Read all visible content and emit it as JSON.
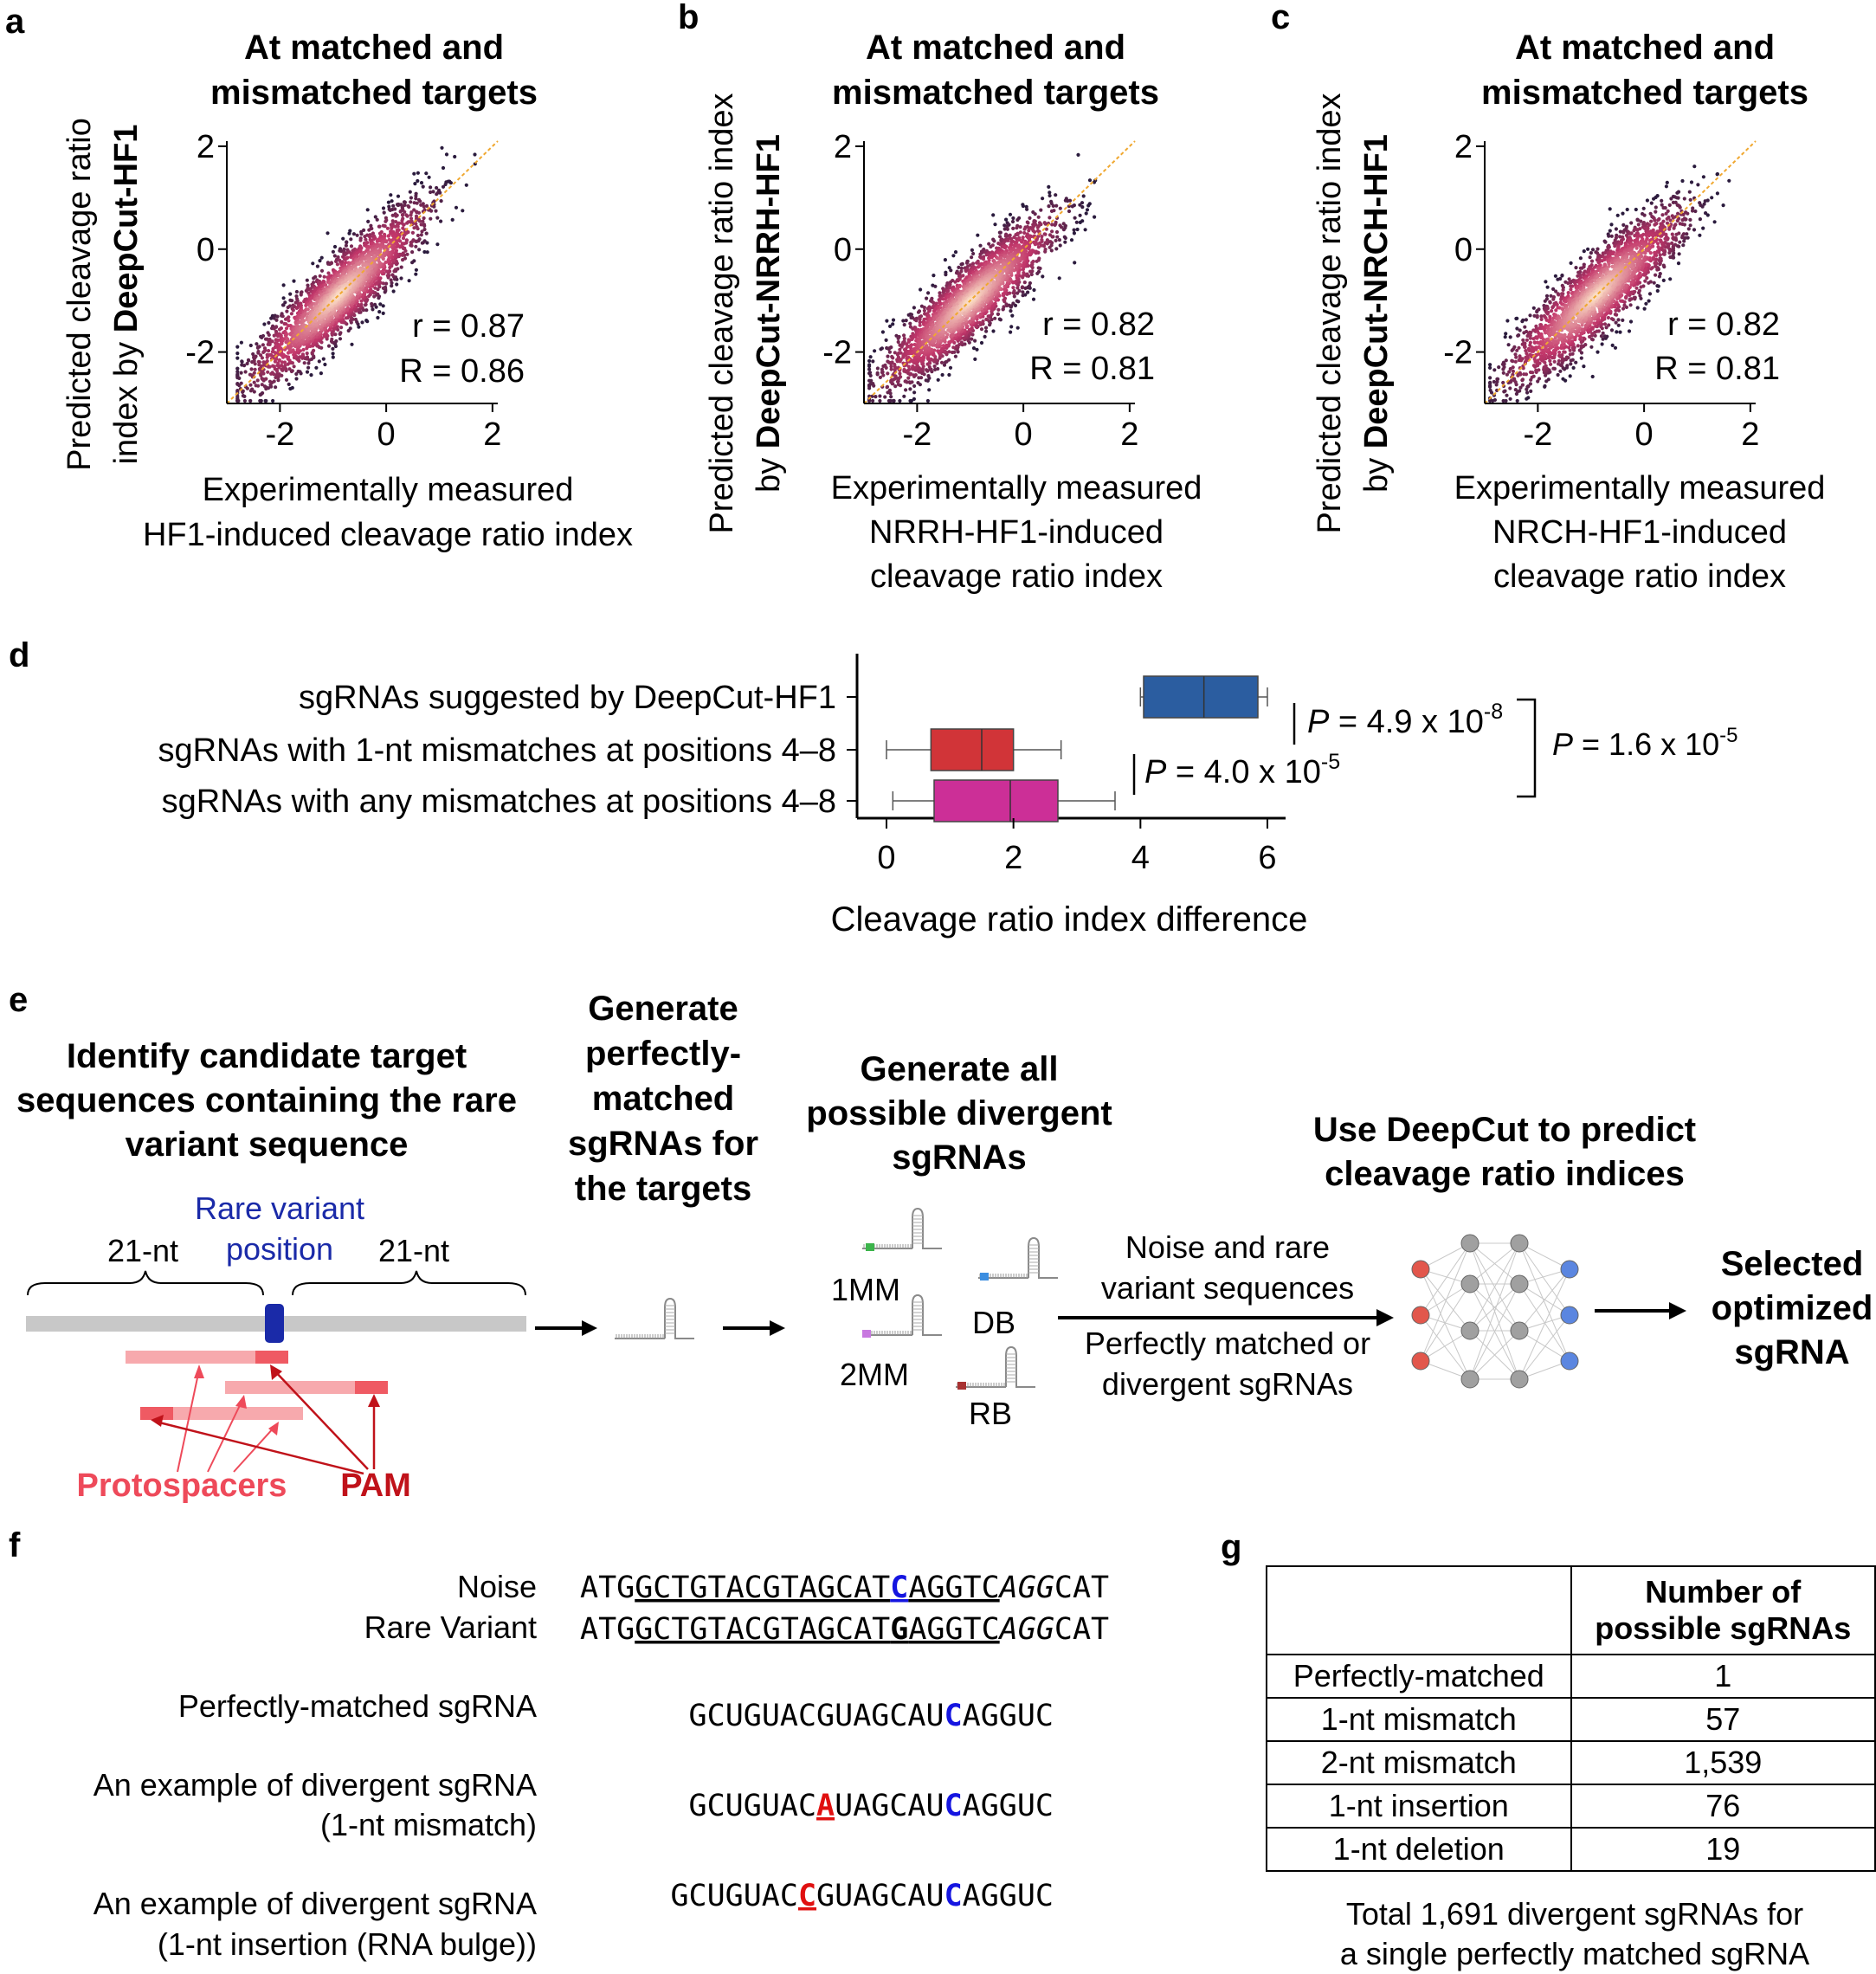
{
  "panels": {
    "a": {
      "letter": "a",
      "title_1": "At matched and",
      "title_2": "mismatched targets",
      "ylabel_1": "Predicted cleavage ratio",
      "ylabel_2a": "index by ",
      "ylabel_2b": "DeepCut-HF1",
      "xlabel_1": "Experimentally measured",
      "xlabel_2": "HF1-induced cleavage ratio index",
      "xlabel_3": "",
      "r_label": "r = 0.87",
      "R_label": "R = 0.86"
    },
    "b": {
      "letter": "b",
      "title_1": "At matched and",
      "title_2": "mismatched targets",
      "ylabel_1": "Predicted cleavage ratio index",
      "ylabel_2a": "by ",
      "ylabel_2b": "DeepCut-NRRH-HF1",
      "xlabel_1": "Experimentally measured",
      "xlabel_2": "NRRH-HF1-induced",
      "xlabel_3": "cleavage ratio index",
      "r_label": "r = 0.82",
      "R_label": "R = 0.81"
    },
    "c": {
      "letter": "c",
      "title_1": "At matched and",
      "title_2": "mismatched targets",
      "ylabel_1": "Predicted cleavage ratio index",
      "ylabel_2a": "by ",
      "ylabel_2b": "DeepCut-NRCH-HF1",
      "xlabel_1": "Experimentally measured",
      "xlabel_2": "NRCH-HF1-induced",
      "xlabel_3": "cleavage ratio index",
      "r_label": "r = 0.82",
      "R_label": "R = 0.81"
    },
    "d": {
      "letter": "d"
    },
    "e": {
      "letter": "e",
      "step1_1": "Identify candidate target",
      "step1_2": "sequences containing the rare",
      "step1_3": "variant sequence",
      "step2_1": "Generate",
      "step2_2": "perfectly-",
      "step2_3": "matched",
      "step2_4": "sgRNAs for",
      "step2_5": "the targets",
      "step3_1": "Generate all",
      "step3_2": "possible divergent",
      "step3_3": "sgRNAs",
      "step4_1": "Use DeepCut to predict",
      "step4_2": "cleavage ratio indices",
      "step5_1": "Selected",
      "step5_2": "optimized",
      "step5_3": "sgRNA",
      "rare_variant_1": "Rare variant",
      "rare_variant_2": "position",
      "flank_left": "21-nt",
      "flank_right": "21-nt",
      "protospacers": "Protospacers",
      "pam": "PAM",
      "mm1": "1MM",
      "mm2": "2MM",
      "db": "DB",
      "rb": "RB",
      "input1_1": "Noise and rare",
      "input1_2": "variant sequences",
      "input2_1": "Perfectly matched or",
      "input2_2": "divergent sgRNAs"
    },
    "f": {
      "letter": "f",
      "noise_label": "Noise",
      "rare_label": "Rare Variant",
      "pm_label": "Perfectly-matched sgRNA",
      "div1_label_1": "An example of divergent sgRNA",
      "div1_label_2": "(1-nt mismatch)",
      "div2_label_1": "An example of divergent sgRNA",
      "div2_label_2": "(1-nt insertion (RNA bulge))",
      "noise_seq": [
        "ATG",
        "GCTGTACGTAGCAT",
        "C",
        "AGGTC",
        "AGG",
        "CAT"
      ],
      "rare_seq": [
        "ATG",
        "GCTGTACGTAGCAT",
        "G",
        "AGGTC",
        "AGG",
        "CAT"
      ],
      "pm_seq": [
        "GCUGUACGUAGCAU",
        "C",
        "AGGUC"
      ],
      "div1_seq": [
        "GCUGUAC",
        "A",
        "UAGCAU",
        "C",
        "AGGUC"
      ],
      "div2_seq": [
        "GCUGUAC",
        "C",
        "GUAGCAU",
        "C",
        "AGGUC"
      ]
    },
    "g": {
      "letter": "g",
      "header_1": "Number of",
      "header_2": "possible sgRNAs",
      "rows": [
        {
          "label": "Perfectly-matched",
          "value": "1"
        },
        {
          "label": "1-nt mismatch",
          "value": "57"
        },
        {
          "label": "2-nt mismatch",
          "value": "1,539"
        },
        {
          "label": "1-nt insertion",
          "value": "76"
        },
        {
          "label": "1-nt deletion",
          "value": "19"
        }
      ],
      "caption_1": "Total 1,691 divergent sgRNAs for",
      "caption_2": "a single perfectly matched sgRNA"
    }
  },
  "colors": {
    "scatter_low": "#2a1b3d",
    "scatter_mid": "#c2366a",
    "scatter_high": "#fde3c8",
    "diag_line": "#f0a830",
    "box_blue": "#2b5da0",
    "box_red": "#d13438",
    "box_magenta": "#cc2f97",
    "rare_variant": "#1a2aa8",
    "protospacer": "#f7a9ad",
    "pam": "#ef5a63",
    "protospacer_text": "#ee4a5a",
    "pam_text": "#c0121a",
    "highlight_blue": "#1515e0",
    "highlight_red": "#e01010",
    "nn_red": "#e2574c",
    "nn_grey": "#a0a0a0",
    "nn_blue": "#5b86e0"
  },
  "chart_data": [
    {
      "type": "scatter",
      "panel": "a",
      "title": "At matched and mismatched targets",
      "xlabel": "Experimentally measured HF1-induced cleavage ratio index",
      "ylabel": "Predicted cleavage ratio index by DeepCut-HF1",
      "xlim": [
        -3.0,
        2.1
      ],
      "ylim": [
        -3.0,
        2.1
      ],
      "xticks": [
        -2,
        0,
        2
      ],
      "yticks": [
        -2,
        0,
        2
      ],
      "pearson_r": 0.87,
      "spearman_R": 0.86,
      "cloud": {
        "center": [
          -0.9,
          -0.9
        ],
        "x_range": [
          -2.8,
          1.9
        ],
        "slope": 0.95,
        "spread": 0.38
      },
      "reference_line": "y = x"
    },
    {
      "type": "scatter",
      "panel": "b",
      "title": "At matched and mismatched targets",
      "xlabel": "Experimentally measured NRRH-HF1-induced cleavage ratio index",
      "ylabel": "Predicted cleavage ratio index by DeepCut-NRRH-HF1",
      "xlim": [
        -3.0,
        2.1
      ],
      "ylim": [
        -3.0,
        2.1
      ],
      "xticks": [
        -2,
        0,
        2
      ],
      "yticks": [
        -2,
        0,
        2
      ],
      "pearson_r": 0.82,
      "spearman_R": 0.81,
      "cloud": {
        "center": [
          -1.0,
          -1.0
        ],
        "x_range": [
          -2.9,
          1.6
        ],
        "slope": 0.9,
        "spread": 0.38
      },
      "reference_line": "y = x"
    },
    {
      "type": "scatter",
      "panel": "c",
      "title": "At matched and mismatched targets",
      "xlabel": "Experimentally measured NRCH-HF1-induced cleavage ratio index",
      "ylabel": "Predicted cleavage ratio index by DeepCut-NRCH-HF1",
      "xlim": [
        -3.0,
        2.1
      ],
      "ylim": [
        -3.0,
        2.1
      ],
      "xticks": [
        -2,
        0,
        2
      ],
      "yticks": [
        -2,
        0,
        2
      ],
      "pearson_r": 0.82,
      "spearman_R": 0.81,
      "cloud": {
        "center": [
          -0.9,
          -0.9
        ],
        "x_range": [
          -2.9,
          1.6
        ],
        "slope": 0.9,
        "spread": 0.4
      },
      "reference_line": "y = x"
    },
    {
      "type": "boxplot",
      "panel": "d",
      "xlabel": "Cleavage ratio index difference",
      "xlim": [
        -0.2,
        6.2
      ],
      "xticks": [
        0,
        2,
        4,
        6
      ],
      "boxes": [
        {
          "label": "sgRNAs suggested by DeepCut-HF1",
          "whisker_low": 4.0,
          "q1": 4.05,
          "median": 5.0,
          "q3": 5.85,
          "whisker_high": 6.0,
          "color": "#2b5da0"
        },
        {
          "label": "sgRNAs with 1-nt mismatches at positions 4–8",
          "whisker_low": 0.0,
          "q1": 0.7,
          "median": 1.5,
          "q3": 2.0,
          "whisker_high": 2.75,
          "color": "#d13438"
        },
        {
          "label": "sgRNAs with any mismatches at positions 4–8",
          "whisker_low": 0.1,
          "q1": 0.75,
          "median": 1.95,
          "q3": 2.7,
          "whisker_high": 3.6,
          "color": "#cc2f97"
        }
      ],
      "annotations": [
        {
          "italic": "P",
          "text": " = 4.9 x 10",
          "exp": "-8",
          "between": [
            0,
            1
          ]
        },
        {
          "italic": "P",
          "text": " = 4.0 x 10",
          "exp": "-5",
          "between": [
            1,
            2
          ]
        },
        {
          "italic": "P",
          "text": " = 1.6 x 10",
          "exp": "-5",
          "between": [
            0,
            2
          ]
        }
      ]
    }
  ]
}
